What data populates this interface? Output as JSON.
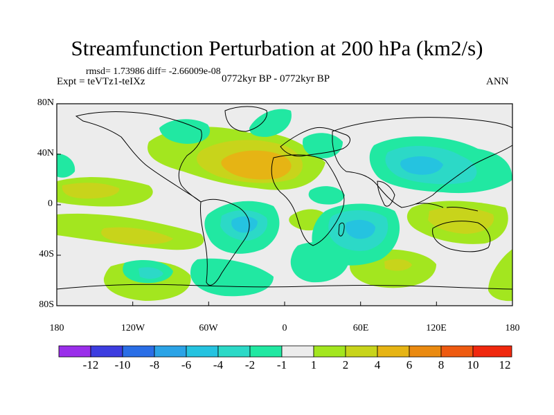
{
  "title": "Streamfunction Perturbation at 200 hPa (km2/s)",
  "stats": "rmsd= 1.73986  diff= -2.66009e-08",
  "expt": "Expt = teVTz1-teIXz",
  "period": "0772kyr BP - 0772kyr BP",
  "season": "ANN",
  "y_ticks": [
    "80N",
    "40N",
    "0",
    "40S",
    "80S"
  ],
  "x_ticks": [
    "180",
    "120W",
    "60W",
    "0",
    "60E",
    "120E",
    "180"
  ],
  "colorbar": {
    "labels": [
      "-12",
      "-10",
      "-8",
      "-6",
      "-4",
      "-2",
      "-1",
      "1",
      "2",
      "4",
      "6",
      "8",
      "10",
      "12"
    ],
    "colors": [
      "#9a2eea",
      "#3d3de0",
      "#2a6ee6",
      "#2ba3e6",
      "#25c3e0",
      "#2cd9c7",
      "#21e8a2",
      "#ececec",
      "#a3e61f",
      "#c8d41b",
      "#e6b414",
      "#ea8a10",
      "#ee5a10",
      "#f0280e"
    ]
  },
  "fill_colors": {
    "ocean_bg": "#ececec",
    "neg1": "#21e8a2",
    "neg2": "#2cd9c7",
    "neg3": "#25c3e0",
    "pos1": "#a3e61f",
    "pos2": "#c8d41b",
    "pos3": "#e6b414"
  }
}
